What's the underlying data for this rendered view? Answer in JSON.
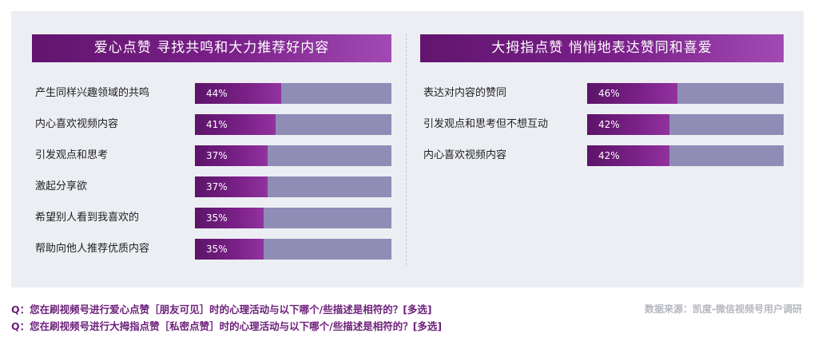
{
  "chart_data": [
    {
      "type": "bar",
      "title": "爱心点赞 寻找共鸣和大力推荐好内容",
      "categories": [
        "产生同样兴趣领域的共鸣",
        "内心喜欢视频内容",
        "引发观点和思考",
        "激起分享欲",
        "希望别人看到我喜欢的",
        "帮助向他人推荐优质内容"
      ],
      "values": [
        44,
        41,
        37,
        37,
        35,
        35
      ],
      "labels": [
        "44%",
        "41%",
        "37%",
        "37%",
        "35%",
        "35%"
      ],
      "xlim": [
        0,
        100
      ],
      "orientation": "horizontal",
      "grid": false,
      "legend": false
    },
    {
      "type": "bar",
      "title": "大拇指点赞 悄悄地表达赞同和喜爱",
      "categories": [
        "表达对内容的赞同",
        "引发观点和思考但不想互动",
        "内心喜欢视频内容"
      ],
      "values": [
        46,
        42,
        42
      ],
      "labels": [
        "46%",
        "42%",
        "42%"
      ],
      "xlim": [
        0,
        100
      ],
      "orientation": "horizontal",
      "grid": false,
      "legend": false
    }
  ],
  "footer": {
    "questions": [
      "Q：您在刷视频号进行爱心点赞［朋友可见］时的心理活动与以下哪个/些描述是相符的？[多选]",
      "Q：您在刷视频号进行大拇指点赞［私密点赞］时的心理活动与以下哪个/些描述是相符的？[多选]"
    ],
    "source": "数据来源：凯度-微信视频号用户调研"
  },
  "colors": {
    "fill": "#7a2188",
    "track": "#8f8cb6",
    "title_bg": "#6a1a78",
    "panel_bg": "#eceef3"
  }
}
